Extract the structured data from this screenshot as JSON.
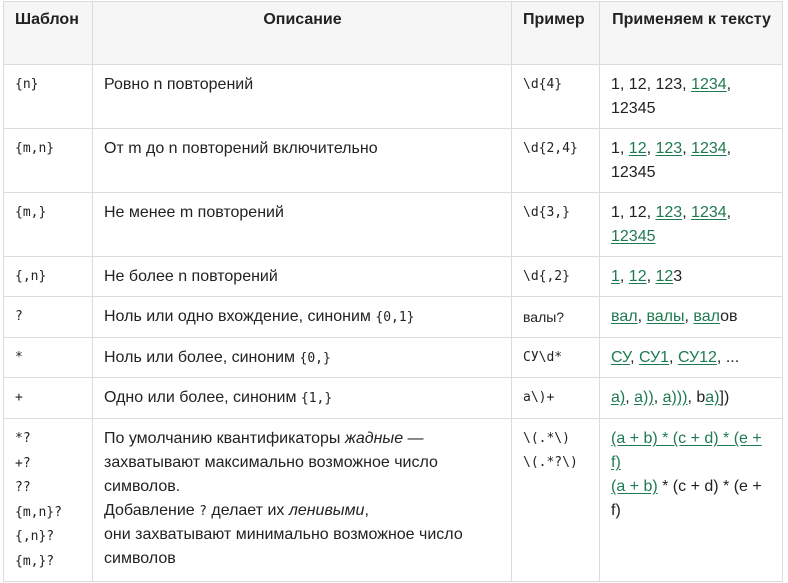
{
  "headers": [
    "Шаблон",
    "Описание",
    "Пример",
    "Применяем к тексту"
  ],
  "rows": [
    {
      "pattern": "{n}",
      "desc": "Ровно n повторений",
      "example": "\\d{4}",
      "parts": [
        {
          "t": "1, 12, 123, ",
          "m": false
        },
        {
          "t": "1234",
          "m": true
        },
        {
          "t": ", 12345",
          "m": false
        }
      ]
    },
    {
      "pattern": "{m,n}",
      "desc": "От m до n повторений включительно",
      "example": "\\d{2,4}",
      "parts": [
        {
          "t": "1, ",
          "m": false
        },
        {
          "t": "12",
          "m": true
        },
        {
          "t": ", ",
          "m": false
        },
        {
          "t": "123",
          "m": true
        },
        {
          "t": ", ",
          "m": false
        },
        {
          "t": "1234",
          "m": true
        },
        {
          "t": ", 12345",
          "m": false
        }
      ]
    },
    {
      "pattern": "{m,}",
      "desc": "Не менее m повторений",
      "example": "\\d{3,}",
      "parts": [
        {
          "t": "1, 12, ",
          "m": false
        },
        {
          "t": "123",
          "m": true
        },
        {
          "t": ", ",
          "m": false
        },
        {
          "t": "1234",
          "m": true
        },
        {
          "t": ", ",
          "m": false
        },
        {
          "t": "12345",
          "m": true
        }
      ]
    },
    {
      "pattern": "{,n}",
      "desc": "Не более n повторений",
      "example": "\\d{,2}",
      "parts": [
        {
          "t": "1",
          "m": true
        },
        {
          "t": ", ",
          "m": false
        },
        {
          "t": "12",
          "m": true
        },
        {
          "t": ", ",
          "m": false
        },
        {
          "t": "12",
          "m": true
        },
        {
          "t": "3",
          "m": false
        }
      ]
    },
    {
      "pattern": "?",
      "desc_text": "Ноль или одно вхождение, синоним ",
      "desc_code": "{0,1}",
      "example": "валы?",
      "parts": [
        {
          "t": "вал",
          "m": true
        },
        {
          "t": ", ",
          "m": false
        },
        {
          "t": "валы",
          "m": true
        },
        {
          "t": ", ",
          "m": false
        },
        {
          "t": "вал",
          "m": true
        },
        {
          "t": "ов",
          "m": false
        }
      ]
    },
    {
      "pattern": "*",
      "desc_text": "Ноль или более, синоним ",
      "desc_code": "{0,}",
      "example": "СУ\\d*",
      "parts": [
        {
          "t": "СУ",
          "m": true
        },
        {
          "t": ", ",
          "m": false
        },
        {
          "t": "СУ1",
          "m": true
        },
        {
          "t": ", ",
          "m": false
        },
        {
          "t": "СУ12",
          "m": true
        },
        {
          "t": ", ...",
          "m": false
        }
      ]
    },
    {
      "pattern": "+",
      "desc_text": "Одно или более, синоним ",
      "desc_code": "{1,}",
      "example": "а\\)+",
      "parts": [
        {
          "t": "а)",
          "m": true
        },
        {
          "t": ", ",
          "m": false
        },
        {
          "t": "а))",
          "m": true
        },
        {
          "t": ", ",
          "m": false
        },
        {
          "t": "а)))",
          "m": true
        },
        {
          "t": ", b",
          "m": false
        },
        {
          "t": "а)",
          "m": true
        },
        {
          "t": "])",
          "m": false
        }
      ]
    }
  ],
  "last_row": {
    "patterns": [
      "*?",
      "+?",
      "??",
      "{m,n}?",
      "{,n}?",
      "{m,}?"
    ],
    "desc": {
      "p1": "По умолчанию квантификаторы ",
      "p1_em": "жадные",
      "p1b": " —",
      "p2": "захватывают максимально возможное число",
      "p3": "символов.",
      "p4": "Добавление ",
      "p4_code": "?",
      "p4b": " делает их ",
      "p4_em": "ленивыми",
      "p4c": ",",
      "p5": "они захватывают минимально возможное число",
      "p6": "символов"
    },
    "examples": [
      "\\(.*\\)",
      "\\(.*?\\)"
    ],
    "result_line1": "(a + b) * (c + d) * (e +",
    "result_line2": "f)",
    "result_line3_match": "(a + b)",
    "result_line3_rest": " * (c + d) * (e +",
    "result_line4": "f)"
  }
}
